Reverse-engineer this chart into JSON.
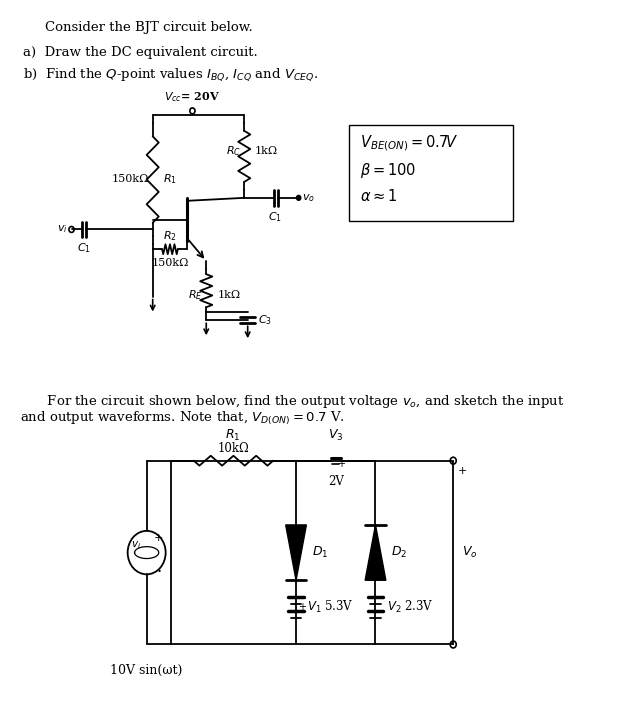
{
  "title_text": "Consider the BJT circuit below.",
  "part_a": "a)  Draw the DC equivalent circuit.",
  "part_b_1": "b)  Find the ",
  "part_b_2": "-point values ",
  "vcc_label": "$V_{cc}$= 20V",
  "r1_label": "150kΩ",
  "r1_name": "$R_1$",
  "rc_label": "$R_C$",
  "rc_val": "1kΩ",
  "r2_name": "$R_2$",
  "r2_label": "150kΩ",
  "re_label": "$R_E$",
  "re_val": "1kΩ",
  "c1_label_bjt": "$C_1$",
  "c3_label": "$C_3$",
  "vi_label": "$v_i$",
  "vo_label": "$v_o$",
  "box_line1": "$V_{BE(ON)} = 0.7V$",
  "box_line2": "$\\beta = 100$",
  "box_line3": "$\\alpha \\approx 1$",
  "paragraph2_1": "    For the circuit shown below, find the output voltage ",
  "paragraph2_2": ", and sketch the input",
  "paragraph2_3": "and output waveforms. Note that, ",
  "paragraph2_4": " = 0.7 V.",
  "r1_2_label": "$R_1$",
  "r1_2_val": "10kΩ",
  "v3_label": "$V_3$",
  "v3_val": "2V",
  "d1_label": "$D_1$",
  "d2_label": "$D_2$",
  "v1_label": "$V_1$",
  "v1_val": "5.3V",
  "v2_label": "$V_2$",
  "v2_val": "2.3V",
  "vi2_label": "$v_i$",
  "vo2_label": "$V_o$",
  "src_label": "10V sin(ωt)",
  "bg_color": "#ffffff"
}
